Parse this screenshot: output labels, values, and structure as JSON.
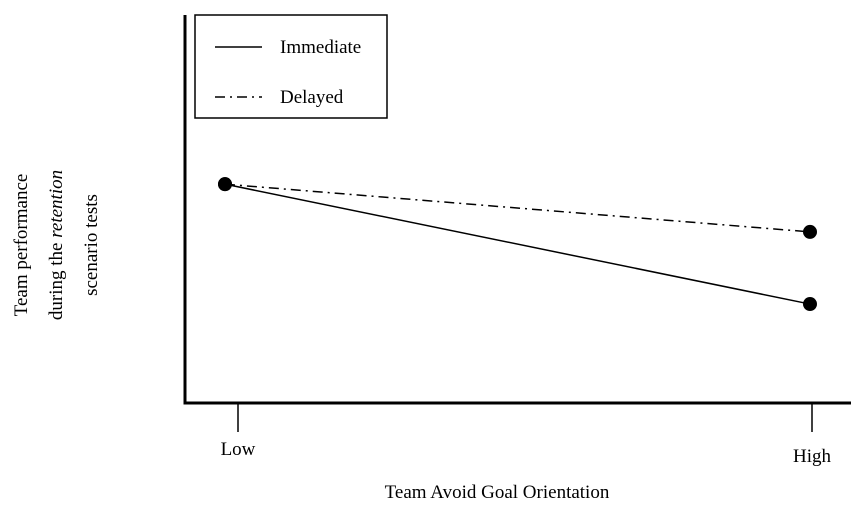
{
  "chart_data": {
    "type": "line",
    "categories": [
      "Low",
      "High"
    ],
    "series": [
      {
        "name": "Immediate",
        "color": "#000000",
        "dash": "solid",
        "values": [
          5.64,
          2.55
        ]
      },
      {
        "name": "Delayed",
        "color": "#000000",
        "dash": "dashdot",
        "values": [
          5.64,
          4.41
        ]
      }
    ],
    "ylim": [
      0,
      10
    ],
    "xlabel": "Team Avoid Goal Orientation",
    "xlabel_color": "#1a1aff",
    "ylabel": {
      "line1": "Team performance",
      "line2": "during the",
      "line2_italic": "retention",
      "line3": "scenario tests"
    },
    "legend": "upper left"
  }
}
